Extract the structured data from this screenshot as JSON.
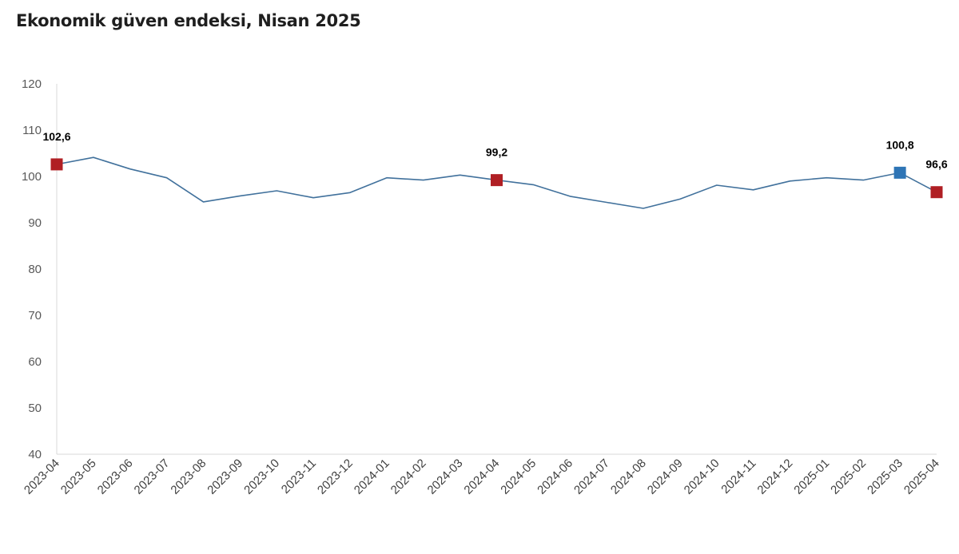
{
  "title": "Ekonomik güven endeksi, Nisan 2025",
  "chart_data": {
    "type": "line",
    "title": "Ekonomik güven endeksi, Nisan 2025",
    "xlabel": "",
    "ylabel": "",
    "ylim": [
      40,
      120
    ],
    "yticks": [
      40,
      50,
      60,
      70,
      80,
      90,
      100,
      110,
      120
    ],
    "grid": false,
    "categories": [
      "2023-04",
      "2023-05",
      "2023-06",
      "2023-07",
      "2023-08",
      "2023-09",
      "2023-10",
      "2023-11",
      "2023-12",
      "2024-01",
      "2024-02",
      "2024-03",
      "2024-04",
      "2024-05",
      "2024-06",
      "2024-07",
      "2024-08",
      "2024-09",
      "2024-10",
      "2024-11",
      "2024-12",
      "2025-01",
      "2025-02",
      "2025-03",
      "2025-04"
    ],
    "series": [
      {
        "name": "",
        "color": "#41719c",
        "values": [
          102.6,
          104.1,
          101.6,
          99.7,
          94.5,
          95.8,
          96.9,
          95.4,
          96.5,
          99.7,
          99.2,
          100.3,
          99.2,
          98.2,
          95.7,
          94.4,
          93.1,
          95.1,
          98.1,
          97.1,
          99.0,
          99.7,
          99.2,
          100.8,
          96.6
        ]
      }
    ],
    "markers": [
      {
        "index": 0,
        "label": "102,6",
        "color": "#b01f24"
      },
      {
        "index": 12,
        "label": "99,2",
        "color": "#b01f24"
      },
      {
        "index": 23,
        "label": "100,8",
        "color": "#2e75b6"
      },
      {
        "index": 24,
        "label": "96,6",
        "color": "#b01f24"
      }
    ]
  }
}
